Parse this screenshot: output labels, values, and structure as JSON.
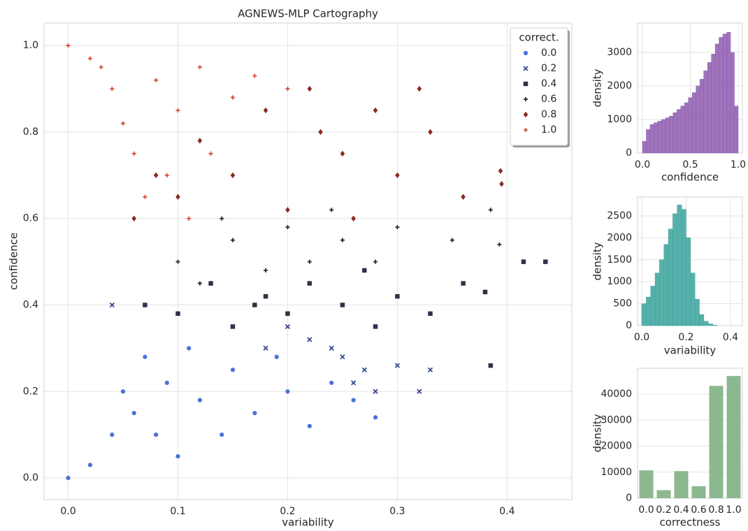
{
  "chart_data": [
    {
      "type": "scatter",
      "title": "AGNEWS-MLP Cartography",
      "x_label": "variability",
      "y_label": "confidence",
      "legend_title": "correct.",
      "legend": "upper right",
      "grid": true,
      "xlim": [
        -0.022,
        0.459
      ],
      "ylim": [
        -0.05,
        1.052
      ],
      "xticks": [
        {
          "value": 0,
          "label": "0.0"
        },
        0.1,
        0.2,
        0.3,
        0.4
      ],
      "yticks": [
        {
          "value": 0,
          "label": "0.0"
        },
        0.2,
        0.4,
        0.6,
        0.8,
        {
          "value": 1,
          "label": "1.0"
        }
      ],
      "series": [
        {
          "name": "0.0",
          "color": "#4a72d8",
          "marker": "circle",
          "x": [
            0,
            0.02,
            0.04,
            0.05,
            0.06,
            0.07,
            0.08,
            0.09,
            0.1,
            0.11,
            0.12,
            0.14,
            0.15,
            0.17,
            0.19,
            0.2,
            0.22,
            0.24,
            0.26,
            0.28
          ],
          "values": [
            0,
            0.03,
            0.1,
            0.2,
            0.15,
            0.28,
            0.1,
            0.22,
            0.05,
            0.3,
            0.18,
            0.1,
            0.25,
            0.15,
            0.28,
            0.2,
            0.12,
            0.22,
            0.18,
            0.14
          ]
        },
        {
          "name": "0.2",
          "color": "#34488f",
          "marker": "x",
          "x": [
            0.04,
            0.18,
            0.2,
            0.22,
            0.24,
            0.25,
            0.26,
            0.27,
            0.28,
            0.3,
            0.32,
            0.33
          ],
          "values": [
            0.4,
            0.3,
            0.35,
            0.32,
            0.3,
            0.28,
            0.22,
            0.25,
            0.2,
            0.26,
            0.2,
            0.25
          ]
        },
        {
          "name": "0.4",
          "color": "#2c3347",
          "marker": "square",
          "x": [
            0.07,
            0.1,
            0.13,
            0.15,
            0.17,
            0.18,
            0.2,
            0.22,
            0.25,
            0.27,
            0.28,
            0.3,
            0.33,
            0.36,
            0.38,
            0.385,
            0.415,
            0.435
          ],
          "values": [
            0.4,
            0.38,
            0.45,
            0.35,
            0.4,
            0.42,
            0.38,
            0.45,
            0.4,
            0.48,
            0.35,
            0.42,
            0.38,
            0.45,
            0.43,
            0.26,
            0.5,
            0.5
          ]
        },
        {
          "name": "0.6",
          "color": "#3c2230",
          "marker": "plus",
          "x": [
            0.1,
            0.12,
            0.14,
            0.15,
            0.18,
            0.2,
            0.22,
            0.24,
            0.25,
            0.28,
            0.3,
            0.35,
            0.385,
            0.393
          ],
          "values": [
            0.5,
            0.45,
            0.6,
            0.55,
            0.48,
            0.58,
            0.5,
            0.62,
            0.55,
            0.5,
            0.58,
            0.55,
            0.62,
            0.54
          ]
        },
        {
          "name": "0.8",
          "color": "#8b2a22",
          "marker": "diamond",
          "x": [
            0.06,
            0.08,
            0.1,
            0.12,
            0.15,
            0.18,
            0.2,
            0.22,
            0.23,
            0.25,
            0.26,
            0.28,
            0.3,
            0.32,
            0.33,
            0.36,
            0.394,
            0.395
          ],
          "values": [
            0.6,
            0.7,
            0.65,
            0.78,
            0.7,
            0.85,
            0.62,
            0.9,
            0.8,
            0.75,
            0.6,
            0.85,
            0.7,
            0.9,
            0.8,
            0.65,
            0.71,
            0.68
          ]
        },
        {
          "name": "1.0",
          "color": "#d9503c",
          "marker": "plus",
          "x": [
            0,
            0.02,
            0.03,
            0.04,
            0.05,
            0.06,
            0.07,
            0.08,
            0.09,
            0.1,
            0.11,
            0.12,
            0.13,
            0.15,
            0.17,
            0.2
          ],
          "values": [
            1,
            0.97,
            0.95,
            0.9,
            0.82,
            0.75,
            0.65,
            0.92,
            0.7,
            0.85,
            0.6,
            0.95,
            0.75,
            0.88,
            0.93,
            0.9
          ]
        }
      ]
    },
    {
      "type": "histogram",
      "x_label": "confidence",
      "y_label": "density",
      "color": "#8e5bb0",
      "grid": true,
      "xlim": [
        -0.051,
        1.044
      ],
      "ylim": [
        0,
        3875
      ],
      "xticks": [
        {
          "value": 0,
          "label": "0.0"
        },
        0.5,
        {
          "value": 1,
          "label": "1.0"
        }
      ],
      "yticks": [
        0,
        1000,
        2000,
        3000
      ],
      "bins": [
        0,
        0.04,
        0.08,
        0.12,
        0.16,
        0.2,
        0.24,
        0.28,
        0.32,
        0.36,
        0.4,
        0.44,
        0.48,
        0.52,
        0.56,
        0.6,
        0.64,
        0.68,
        0.72,
        0.76,
        0.8,
        0.84,
        0.88,
        0.92,
        0.96,
        1
      ],
      "values": [
        350,
        700,
        850,
        900,
        950,
        1000,
        1050,
        1100,
        1200,
        1300,
        1400,
        1500,
        1650,
        1800,
        2000,
        2200,
        2450,
        2700,
        2950,
        3250,
        3450,
        3550,
        3600,
        3000,
        1400
      ]
    },
    {
      "type": "histogram",
      "x_label": "variability",
      "y_label": "density",
      "color": "#3aa39c",
      "grid": true,
      "xlim": [
        -0.019,
        0.454
      ],
      "ylim": [
        0,
        2930
      ],
      "xticks": [
        {
          "value": 0,
          "label": "0.0"
        },
        0.2,
        0.4
      ],
      "yticks": [
        0,
        500,
        1000,
        1500,
        2000,
        2500
      ],
      "bins": [
        0,
        0.02,
        0.04,
        0.06,
        0.08,
        0.1,
        0.12,
        0.14,
        0.16,
        0.18,
        0.2,
        0.22,
        0.24,
        0.26,
        0.28,
        0.3,
        0.32,
        0.34
      ],
      "values": [
        500,
        650,
        900,
        1200,
        1500,
        1850,
        2200,
        2550,
        2750,
        2650,
        2000,
        1200,
        600,
        250,
        100,
        40,
        10
      ]
    },
    {
      "type": "bar",
      "x_label": "correctness",
      "y_label": "density",
      "color": "#8cb88f",
      "grid": true,
      "categories": [
        "0.0",
        "0.2",
        "0.4",
        "0.6",
        "0.8",
        "1.0"
      ],
      "values": [
        10700,
        3100,
        10400,
        4600,
        43200,
        47000
      ],
      "ylim": [
        0,
        50000
      ],
      "yticks": [
        0,
        10000,
        20000,
        30000,
        40000
      ]
    }
  ]
}
